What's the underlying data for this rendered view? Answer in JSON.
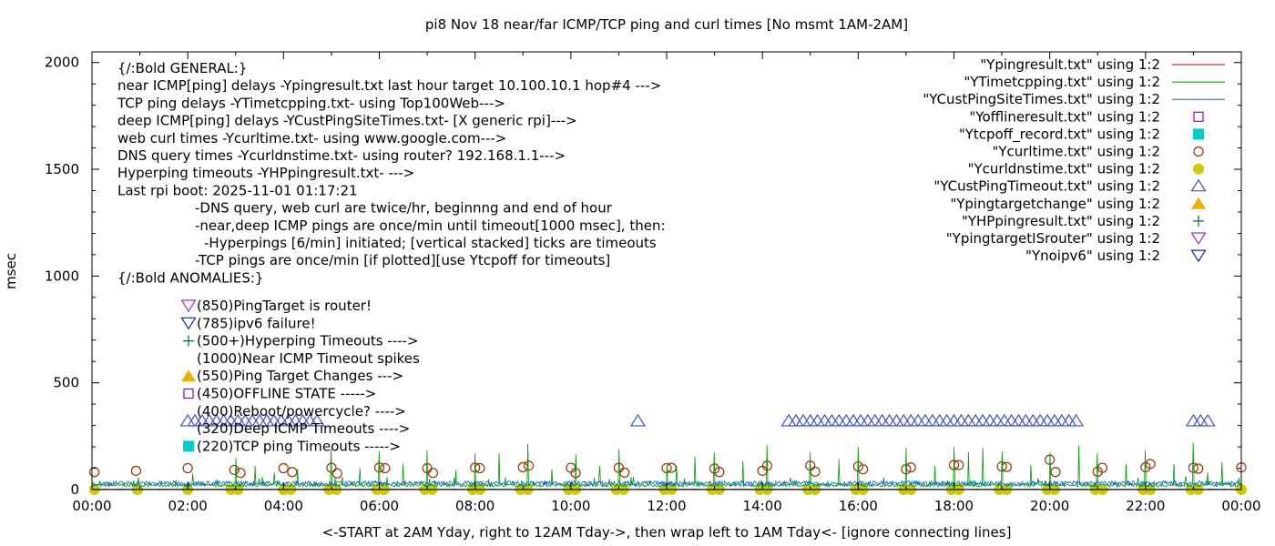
{
  "chart_data": {
    "type": "line",
    "title": "pi8 Nov 18  near/far ICMP/TCP ping and curl times [No msmt 1AM-2AM]",
    "xlabel": "<-START at 2AM Yday, right to 12AM Tday->, then wrap left to 1AM Tday<- [ignore connecting lines]",
    "ylabel": "msec",
    "xlim": [
      0,
      24
    ],
    "ylim": [
      0,
      2050
    ],
    "x_ticks": [
      "00:00",
      "02:00",
      "04:00",
      "06:00",
      "08:00",
      "10:00",
      "12:00",
      "14:00",
      "16:00",
      "18:00",
      "20:00",
      "22:00",
      "00:00"
    ],
    "y_ticks": [
      "0",
      "500",
      "1000",
      "1500",
      "2000"
    ],
    "grid": false,
    "legend_position": "top-right",
    "legend": [
      {
        "label": "\"Ypingresult.txt\" using 1:2",
        "color": "#cc0000",
        "marker": "line"
      },
      {
        "label": "\"YTimetcpping.txt\" using 1:2",
        "color": "#009900",
        "marker": "line"
      },
      {
        "label": "\"YCustPingSiteTimes.txt\" using 1:2",
        "color": "#0066cc",
        "marker": "line"
      },
      {
        "label": "\"Yofflineresult.txt\" using 1:2",
        "color": "#9900cc",
        "marker": "open-square"
      },
      {
        "label": "\"Ytcpoff_record.txt\" using 1:2",
        "color": "#00cccc",
        "marker": "filled-square"
      },
      {
        "label": "\"Ycurltime.txt\" using 1:2",
        "color": "#993300",
        "marker": "open-circle"
      },
      {
        "label": "\"Ycurldnstime.txt\" using 1:2",
        "color": "#cccc00",
        "marker": "filled-circle"
      },
      {
        "label": "\"YCustPingTimeout.txt\" using 1:2",
        "color": "#3355cc",
        "marker": "open-triangle-up"
      },
      {
        "label": "\"Ypingtargetchange\" using 1:2",
        "color": "#f0b000",
        "marker": "filled-triangle-up"
      },
      {
        "label": "\"YHPpingresult.txt\" using 1:2",
        "color": "#006633",
        "marker": "plus"
      },
      {
        "label": "\"YpingtargetISrouter\" using 1:2",
        "color": "#9933cc",
        "marker": "open-triangle-down"
      },
      {
        "label": "\"Ynoipv6\" using 1:2",
        "color": "#003399",
        "marker": "open-triangle-down"
      }
    ],
    "notes": [
      "{/:Bold GENERAL:}",
      "near ICMP[ping] delays -Ypingresult.txt last hour target 10.100.10.1 hop#4 --->",
      "TCP ping delays -YTimetcpping.txt- using Top100Web--->",
      "deep ICMP[ping] delays -YCustPingSiteTimes.txt- [X generic rpi]--->",
      "web curl times -Ycurltime.txt- using www.google.com--->",
      "DNS query times -Ycurldnstime.txt- using router? 192.168.1.1--->",
      "Hyperping timeouts -YHPpingresult.txt- --->",
      "Last rpi boot: 2025-11-01 01:17:21",
      "-DNS query, web curl are twice/hr, beginnng and end of hour",
      "-near,deep ICMP pings are once/min until timeout[1000 msec], then:",
      "-Hyperpings [6/min] initiated; [vertical stacked] ticks are timeouts",
      "-TCP pings are once/min [if plotted][use Ytcpoff for timeouts]",
      "{/:Bold ANOMALIES:}"
    ],
    "anomaly_notes": [
      {
        "marker": "open-triangle-down",
        "color": "#9933cc",
        "text": "(850)PingTarget is router!"
      },
      {
        "marker": "open-triangle-down",
        "color": "#003399",
        "text": "(785)ipv6 failure!"
      },
      {
        "marker": "plus",
        "color": "#006633",
        "text": "(500+)Hyperping Timeouts ---->"
      },
      {
        "marker": "none",
        "color": "#000000",
        "text": "(1000)Near ICMP Timeout spikes"
      },
      {
        "marker": "filled-triangle-up",
        "color": "#f0b000",
        "text": "(550)Ping Target Changes --->"
      },
      {
        "marker": "open-square",
        "color": "#9900cc",
        "text": "(450)OFFLINE STATE ----->"
      },
      {
        "marker": "none",
        "color": "#000000",
        "text": "(400)Reboot/powercycle? ---->"
      },
      {
        "marker": "none",
        "color": "#000000",
        "text": "(320)Deep ICMP Timeouts ---->"
      },
      {
        "marker": "filled-square",
        "color": "#00cccc",
        "text": "(220)TCP ping Timeouts ----->"
      }
    ],
    "series": [
      {
        "name": "\"Ycurltime.txt\" using 1:2",
        "style": "open-circle",
        "color": "#993300",
        "points": [
          [
            0.05,
            82
          ],
          [
            0.92,
            88
          ],
          [
            2.0,
            100
          ],
          [
            2.97,
            92
          ],
          [
            3.1,
            78
          ],
          [
            4.0,
            100
          ],
          [
            4.18,
            82
          ],
          [
            5.0,
            102
          ],
          [
            5.12,
            76
          ],
          [
            6.0,
            103
          ],
          [
            6.12,
            100
          ],
          [
            7.0,
            100
          ],
          [
            7.12,
            78
          ],
          [
            8.0,
            103
          ],
          [
            8.1,
            100
          ],
          [
            9.0,
            105
          ],
          [
            9.12,
            112
          ],
          [
            10.0,
            102
          ],
          [
            10.1,
            78
          ],
          [
            11.0,
            102
          ],
          [
            11.12,
            80
          ],
          [
            12.0,
            100
          ],
          [
            12.1,
            102
          ],
          [
            13.0,
            98
          ],
          [
            13.1,
            82
          ],
          [
            14.0,
            88
          ],
          [
            14.1,
            112
          ],
          [
            15.0,
            112
          ],
          [
            15.1,
            84
          ],
          [
            16.0,
            108
          ],
          [
            16.1,
            95
          ],
          [
            17.0,
            95
          ],
          [
            17.1,
            104
          ],
          [
            18.0,
            115
          ],
          [
            18.1,
            115
          ],
          [
            19.0,
            108
          ],
          [
            19.1,
            106
          ],
          [
            20.0,
            140
          ],
          [
            20.12,
            82
          ],
          [
            21.0,
            84
          ],
          [
            21.1,
            102
          ],
          [
            22.0,
            105
          ],
          [
            22.1,
            120
          ],
          [
            23.0,
            102
          ],
          [
            23.1,
            98
          ],
          [
            24.0,
            104
          ]
        ]
      },
      {
        "name": "\"Ycurldnstime.txt\" using 1:2",
        "style": "filled-circle",
        "color": "#cccc00",
        "points": [
          [
            0.05,
            0
          ],
          [
            0.95,
            0
          ],
          [
            2.0,
            0
          ],
          [
            2.9,
            0
          ],
          [
            3.05,
            0
          ],
          [
            4.0,
            0
          ],
          [
            4.15,
            0
          ],
          [
            4.95,
            0
          ],
          [
            5.1,
            0
          ],
          [
            5.95,
            0
          ],
          [
            6.1,
            0
          ],
          [
            6.95,
            0
          ],
          [
            7.1,
            0
          ],
          [
            7.95,
            0
          ],
          [
            8.1,
            0
          ],
          [
            8.95,
            0
          ],
          [
            9.1,
            0
          ],
          [
            9.95,
            0
          ],
          [
            10.1,
            0
          ],
          [
            10.95,
            0
          ],
          [
            11.1,
            0
          ],
          [
            11.95,
            0
          ],
          [
            12.1,
            0
          ],
          [
            12.95,
            0
          ],
          [
            13.1,
            0
          ],
          [
            13.95,
            0
          ],
          [
            14.1,
            0
          ],
          [
            14.95,
            0
          ],
          [
            15.1,
            0
          ],
          [
            15.95,
            0
          ],
          [
            16.1,
            0
          ],
          [
            16.95,
            0
          ],
          [
            17.1,
            0
          ],
          [
            17.95,
            0
          ],
          [
            18.1,
            0
          ],
          [
            18.95,
            0
          ],
          [
            19.1,
            0
          ],
          [
            19.95,
            0
          ],
          [
            20.1,
            0
          ],
          [
            20.95,
            0
          ],
          [
            21.1,
            0
          ],
          [
            21.95,
            0
          ],
          [
            22.1,
            0
          ],
          [
            22.95,
            0
          ],
          [
            23.1,
            0
          ],
          [
            24.0,
            0
          ]
        ]
      },
      {
        "name": "\"YCustPingTimeout.txt\" using 1:2",
        "style": "open-triangle-up",
        "color": "#3355cc",
        "points": [
          [
            2.0,
            320
          ],
          [
            2.15,
            320
          ],
          [
            2.3,
            320
          ],
          [
            2.45,
            320
          ],
          [
            2.6,
            320
          ],
          [
            2.75,
            320
          ],
          [
            2.9,
            320
          ],
          [
            3.05,
            320
          ],
          [
            3.2,
            320
          ],
          [
            3.35,
            320
          ],
          [
            3.5,
            320
          ],
          [
            3.65,
            320
          ],
          [
            3.8,
            320
          ],
          [
            3.95,
            320
          ],
          [
            4.1,
            320
          ],
          [
            4.25,
            320
          ],
          [
            4.4,
            320
          ],
          [
            4.55,
            320
          ],
          [
            4.7,
            320
          ],
          [
            11.4,
            320
          ],
          [
            14.55,
            320
          ],
          [
            14.7,
            320
          ],
          [
            14.85,
            320
          ],
          [
            15.0,
            320
          ],
          [
            15.15,
            320
          ],
          [
            15.3,
            320
          ],
          [
            15.45,
            320
          ],
          [
            15.6,
            320
          ],
          [
            15.75,
            320
          ],
          [
            15.9,
            320
          ],
          [
            16.05,
            320
          ],
          [
            16.2,
            320
          ],
          [
            16.35,
            320
          ],
          [
            16.5,
            320
          ],
          [
            16.65,
            320
          ],
          [
            16.8,
            320
          ],
          [
            16.95,
            320
          ],
          [
            17.1,
            320
          ],
          [
            17.25,
            320
          ],
          [
            17.4,
            320
          ],
          [
            17.55,
            320
          ],
          [
            17.7,
            320
          ],
          [
            17.85,
            320
          ],
          [
            18.0,
            320
          ],
          [
            18.15,
            320
          ],
          [
            18.3,
            320
          ],
          [
            18.45,
            320
          ],
          [
            18.6,
            320
          ],
          [
            18.75,
            320
          ],
          [
            18.9,
            320
          ],
          [
            19.05,
            320
          ],
          [
            19.2,
            320
          ],
          [
            19.35,
            320
          ],
          [
            19.5,
            320
          ],
          [
            19.65,
            320
          ],
          [
            19.8,
            320
          ],
          [
            19.95,
            320
          ],
          [
            20.1,
            320
          ],
          [
            20.25,
            320
          ],
          [
            20.4,
            320
          ],
          [
            20.55,
            320
          ],
          [
            23.0,
            320
          ],
          [
            23.15,
            320
          ],
          [
            23.3,
            320
          ]
        ]
      },
      {
        "name": "\"YTimetcpping.txt\" using 1:2",
        "style": "line",
        "color": "#009900",
        "baseline": 20,
        "spikes": [
          [
            2.1,
            75
          ],
          [
            3.0,
            150
          ],
          [
            3.4,
            110
          ],
          [
            3.8,
            80
          ],
          [
            4.3,
            95
          ],
          [
            5.0,
            190
          ],
          [
            5.6,
            100
          ],
          [
            6.0,
            180
          ],
          [
            6.5,
            120
          ],
          [
            7.0,
            185
          ],
          [
            7.6,
            90
          ],
          [
            8.0,
            170
          ],
          [
            8.5,
            170
          ],
          [
            9.1,
            215
          ],
          [
            9.6,
            95
          ],
          [
            10.1,
            165
          ],
          [
            10.6,
            110
          ],
          [
            11.0,
            190
          ],
          [
            11.3,
            60
          ],
          [
            12.0,
            110
          ],
          [
            12.2,
            110
          ],
          [
            12.6,
            155
          ],
          [
            13.0,
            175
          ],
          [
            13.6,
            135
          ],
          [
            14.1,
            210
          ],
          [
            14.6,
            105
          ],
          [
            15.0,
            175
          ],
          [
            15.6,
            140
          ],
          [
            16.0,
            200
          ],
          [
            16.6,
            105
          ],
          [
            17.0,
            195
          ],
          [
            17.6,
            110
          ],
          [
            18.0,
            200
          ],
          [
            18.3,
            175
          ],
          [
            18.6,
            195
          ],
          [
            19.0,
            180
          ],
          [
            19.6,
            115
          ],
          [
            20.0,
            175
          ],
          [
            20.6,
            205
          ],
          [
            21.0,
            170
          ],
          [
            21.6,
            120
          ],
          [
            22.0,
            185
          ],
          [
            22.6,
            120
          ],
          [
            23.0,
            220
          ],
          [
            23.3,
            80
          ],
          [
            23.6,
            130
          ]
        ]
      },
      {
        "name": "\"YCustPingSiteTimes.txt\" using 1:2",
        "style": "line",
        "color": "#0066cc",
        "baseline": 30
      },
      {
        "name": "\"Ypingresult.txt\" using 1:2",
        "style": "line",
        "color": "#cc0000",
        "baseline": 2
      }
    ]
  }
}
